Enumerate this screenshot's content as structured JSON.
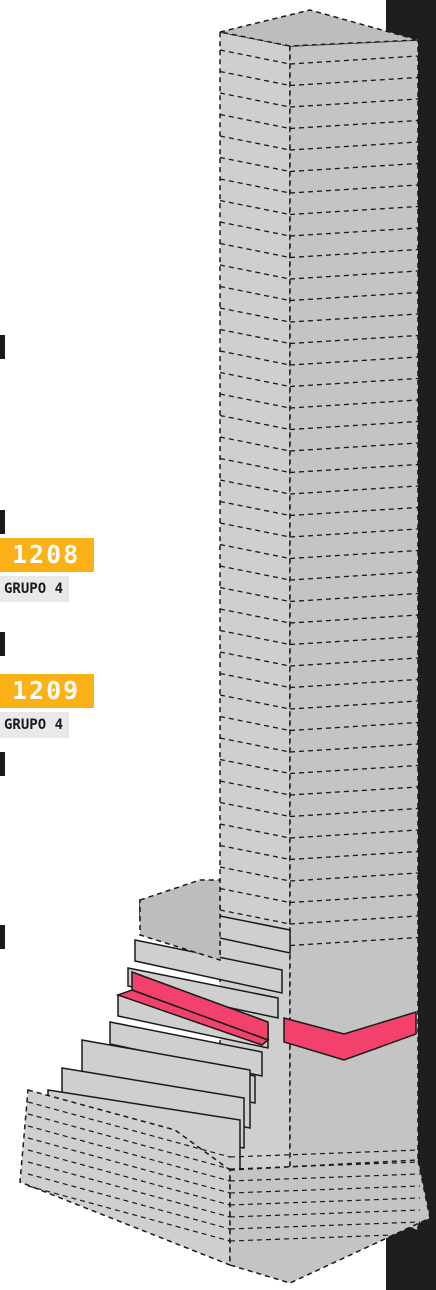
{
  "colors": {
    "dark_strip": "#1e1e1e",
    "tower_fill": "#cfcfcf",
    "tower_side": "#c4c4c4",
    "tower_top": "#bdbdbd",
    "outline": "#1a1a1a",
    "highlight_floor": "#f2416a",
    "tag_accent": "#fbb116",
    "tag_group_bg": "#e9e9e9"
  },
  "units": [
    {
      "number": "1208",
      "group": "GRUPO 4"
    },
    {
      "number": "1209",
      "group": "GRUPO 4"
    }
  ]
}
